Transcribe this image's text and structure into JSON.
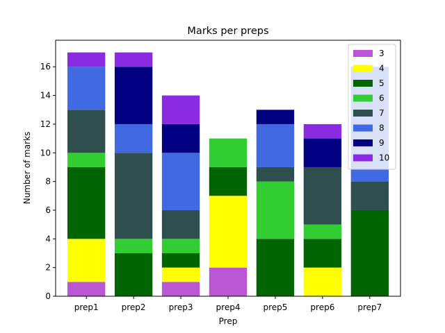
{
  "chart_data": {
    "type": "bar",
    "stacked": true,
    "title": "Marks per preps",
    "xlabel": "Prep",
    "ylabel": "Number of marks",
    "ylim": [
      0,
      17.85
    ],
    "yticks": [
      0,
      2,
      4,
      6,
      8,
      10,
      12,
      14,
      16
    ],
    "categories": [
      "prep1",
      "prep2",
      "prep3",
      "prep4",
      "prep5",
      "prep6",
      "prep7"
    ],
    "legend": {
      "placement": "top-right"
    },
    "series": [
      {
        "name": "3",
        "color": "#BA55D3",
        "values": [
          1,
          0,
          1,
          2,
          0,
          0,
          0
        ]
      },
      {
        "name": "4",
        "color": "#FFFF00",
        "values": [
          3,
          0,
          1,
          5,
          0,
          2,
          0
        ]
      },
      {
        "name": "5",
        "color": "#006400",
        "values": [
          5,
          3,
          1,
          2,
          4,
          2,
          6
        ]
      },
      {
        "name": "6",
        "color": "#32CD32",
        "values": [
          1,
          1,
          1,
          2,
          4,
          1,
          0
        ]
      },
      {
        "name": "7",
        "color": "#2F4F4F",
        "values": [
          3,
          6,
          2,
          0,
          1,
          4,
          2
        ]
      },
      {
        "name": "8",
        "color": "#4169E1",
        "values": [
          3,
          2,
          4,
          0,
          3,
          0,
          8
        ]
      },
      {
        "name": "9",
        "color": "#000080",
        "values": [
          0,
          4,
          2,
          0,
          1,
          2,
          0
        ]
      },
      {
        "name": "10",
        "color": "#8A2BE2",
        "values": [
          1,
          1,
          2,
          0,
          0,
          1,
          0
        ]
      }
    ]
  }
}
